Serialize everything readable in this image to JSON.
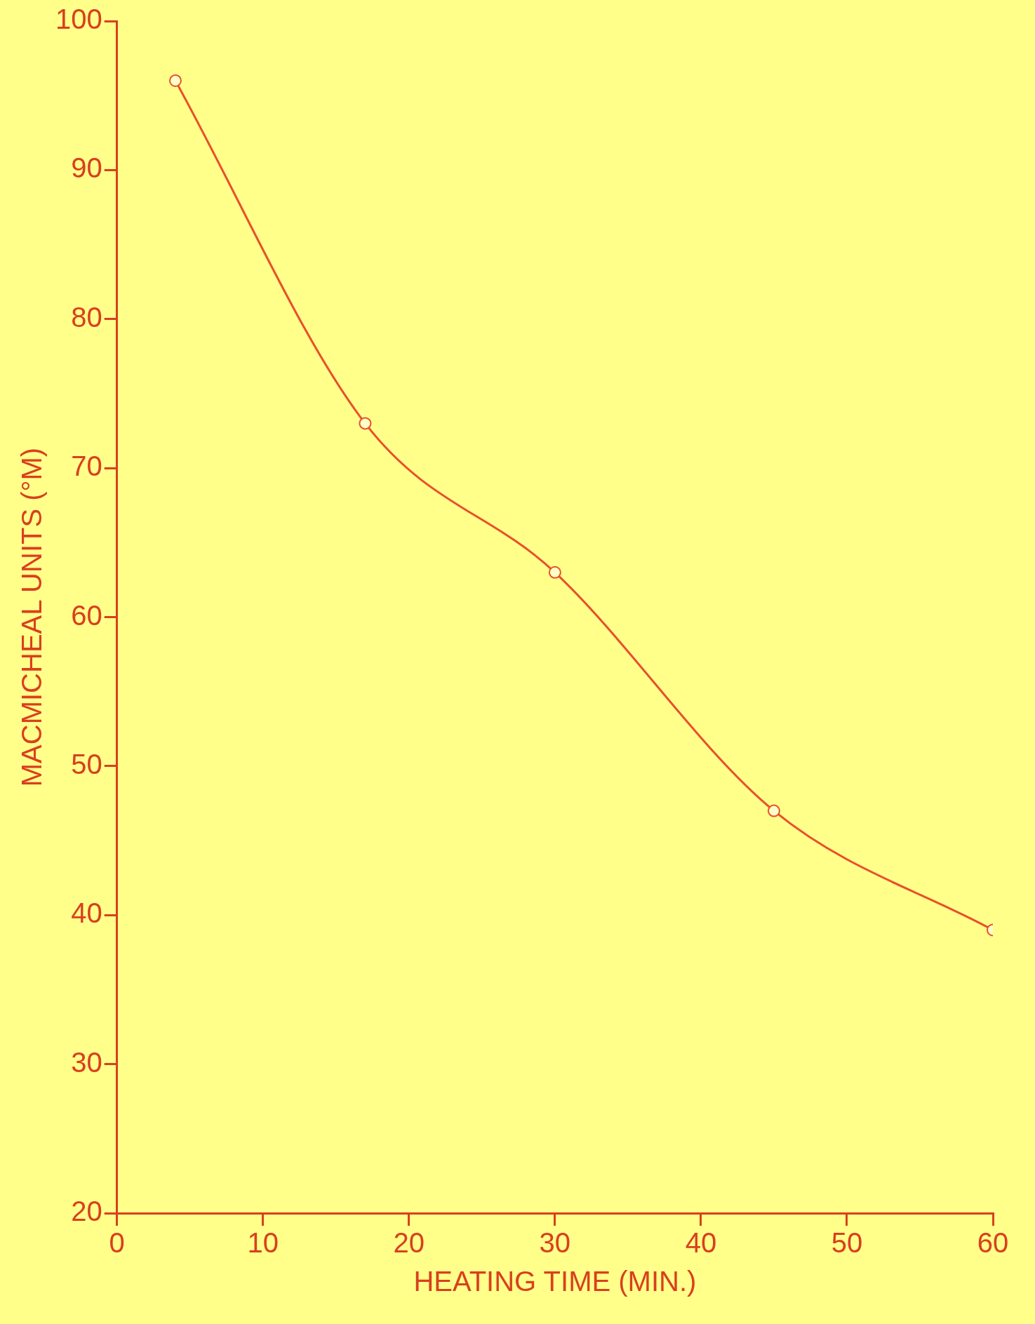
{
  "chart_data": {
    "type": "line",
    "xlabel": "HEATING TIME (MIN.)",
    "ylabel": "MACMICHEAL UNITS (°M)",
    "x": [
      4,
      17,
      30,
      45,
      60
    ],
    "series": [
      {
        "color": "#e8502a",
        "values": [
          96,
          73,
          63,
          47,
          39
        ]
      }
    ],
    "xlim": [
      0,
      60
    ],
    "xticks": [
      0,
      10,
      20,
      30,
      40,
      50,
      60
    ],
    "ylim": [
      20,
      100
    ],
    "yticks": [
      20,
      30,
      40,
      50,
      60,
      70,
      80,
      90,
      100
    ],
    "grid": false,
    "legend": false,
    "marker": "circle",
    "line_style": "solid"
  }
}
